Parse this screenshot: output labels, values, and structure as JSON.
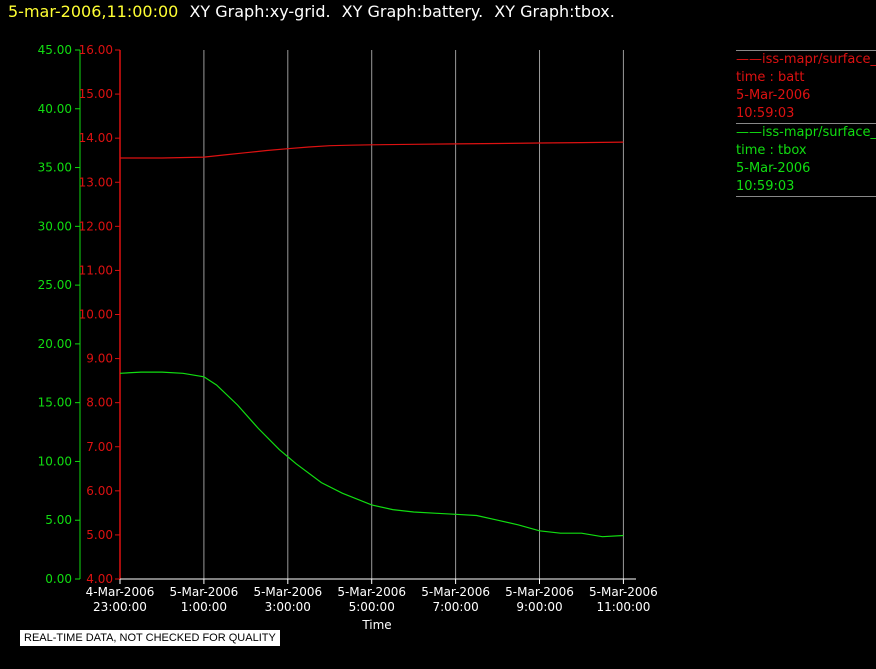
{
  "header": {
    "timestamp": "5-mar-2006,11:00:00",
    "titles": [
      "XY Graph:xy-grid.",
      "XY Graph:battery.",
      "XY Graph:tbox."
    ]
  },
  "colors": {
    "batt": "#dd1111",
    "tbox": "#11dd11",
    "grid": "#9a9a9a",
    "background": "#000000"
  },
  "legend": [
    {
      "name": "iss-mapr/surface_",
      "label": "time : batt",
      "date": "5-Mar-2006",
      "time": "10:59:03"
    },
    {
      "name": "iss-mapr/surface_",
      "label": "time : tbox",
      "date": "5-Mar-2006",
      "time": "10:59:03"
    }
  ],
  "badge": "REAL-TIME DATA, NOT CHECKED FOR QUALITY",
  "chart_data": {
    "type": "line",
    "xlabel": "Time",
    "x_ticks": [
      {
        "hours": 0,
        "date": "4-Mar-2006",
        "time": "23:00:00"
      },
      {
        "hours": 2,
        "date": "5-Mar-2006",
        "time": "1:00:00"
      },
      {
        "hours": 4,
        "date": "5-Mar-2006",
        "time": "3:00:00"
      },
      {
        "hours": 6,
        "date": "5-Mar-2006",
        "time": "5:00:00"
      },
      {
        "hours": 8,
        "date": "5-Mar-2006",
        "time": "7:00:00"
      },
      {
        "hours": 10,
        "date": "5-Mar-2006",
        "time": "9:00:00"
      },
      {
        "hours": 12,
        "date": "5-Mar-2006",
        "time": "11:00:00"
      }
    ],
    "xlim": [
      0,
      12.3
    ],
    "y_left": {
      "ylim": [
        0,
        45
      ],
      "ticks": [
        "0.00",
        "5.00",
        "10.00",
        "15.00",
        "20.00",
        "25.00",
        "30.00",
        "35.00",
        "40.00",
        "45.00"
      ]
    },
    "y_right": {
      "ylim": [
        4,
        16
      ],
      "ticks": [
        "4.00",
        "5.00",
        "6.00",
        "7.00",
        "8.00",
        "9.00",
        "10.00",
        "11.00",
        "12.00",
        "13.00",
        "14.00",
        "15.00",
        "16.00"
      ]
    },
    "grid": "vertical",
    "series": [
      {
        "name": "batt",
        "axis": "right",
        "x": [
          0,
          1,
          2,
          2.5,
          3,
          3.5,
          4,
          4.5,
          5,
          5.5,
          6,
          7,
          8,
          9,
          10,
          11,
          12
        ],
        "y": [
          13.55,
          13.55,
          13.57,
          13.62,
          13.67,
          13.72,
          13.76,
          13.8,
          13.83,
          13.84,
          13.85,
          13.86,
          13.87,
          13.88,
          13.89,
          13.9,
          13.91
        ]
      },
      {
        "name": "tbox",
        "axis": "left",
        "x": [
          0,
          0.5,
          1,
          1.5,
          2,
          2.3,
          2.8,
          3.3,
          3.8,
          4.2,
          4.8,
          5.3,
          6,
          6.5,
          7,
          7.5,
          8,
          8.5,
          9,
          9.5,
          10,
          10.5,
          11,
          11.5,
          12
        ],
        "y": [
          17.5,
          17.6,
          17.6,
          17.5,
          17.2,
          16.5,
          14.8,
          12.8,
          11.0,
          9.8,
          8.2,
          7.3,
          6.3,
          5.9,
          5.7,
          5.6,
          5.5,
          5.4,
          5.0,
          4.6,
          4.1,
          3.9,
          3.9,
          3.6,
          3.7
        ]
      }
    ]
  }
}
